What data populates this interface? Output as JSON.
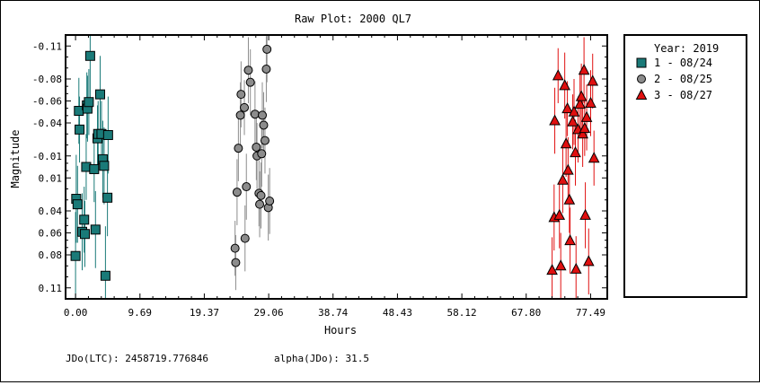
{
  "footer": {
    "jdo_label": "JDo(LTC): 2458719.776846",
    "alpha_label": "alpha(JDo): 31.5"
  },
  "chart_data": {
    "type": "scatter",
    "title": "Raw Plot: 2000 QL7",
    "xlabel": "Hours",
    "ylabel": "Magnitude",
    "xlim": [
      -1.5,
      80.0
    ],
    "ylim": [
      0.12,
      -0.12
    ],
    "y_inverted": true,
    "x_ticks": [
      0.0,
      9.69,
      19.37,
      29.06,
      38.74,
      48.43,
      58.12,
      67.8,
      77.49
    ],
    "x_tick_labels": [
      "0.00",
      "9.69",
      "19.37",
      "29.06",
      "38.74",
      "48.43",
      "58.12",
      "67.80",
      "77.49"
    ],
    "y_ticks": [
      -0.11,
      -0.08,
      -0.06,
      -0.04,
      -0.01,
      0.01,
      0.04,
      0.06,
      0.08,
      0.11
    ],
    "y_tick_labels": [
      "-0.11",
      "-0.08",
      "-0.06",
      "-0.04",
      "-0.01",
      "0.01",
      "0.04",
      "0.06",
      "0.08",
      "0.11"
    ],
    "legend": {
      "title": "Year: 2019",
      "position": "right"
    },
    "series": [
      {
        "name": "1 - 08/24",
        "marker": "square",
        "color": "#1a7a78",
        "points": [
          [
            0.0,
            0.081,
            0.04
          ],
          [
            0.1,
            0.029,
            0.04
          ],
          [
            0.3,
            0.034,
            0.035
          ],
          [
            0.5,
            -0.051,
            0.03
          ],
          [
            0.6,
            -0.034,
            0.03
          ],
          [
            1.0,
            0.059,
            0.035
          ],
          [
            1.3,
            0.048,
            0.03
          ],
          [
            1.4,
            0.061,
            0.03
          ],
          [
            1.6,
            0.0,
            0.03
          ],
          [
            1.7,
            -0.056,
            0.03
          ],
          [
            1.8,
            -0.053,
            0.03
          ],
          [
            2.0,
            -0.059,
            0.03
          ],
          [
            2.2,
            -0.101,
            0.045
          ],
          [
            2.8,
            0.002,
            0.03
          ],
          [
            3.0,
            0.057,
            0.035
          ],
          [
            3.3,
            -0.026,
            0.03
          ],
          [
            3.4,
            -0.03,
            0.03
          ],
          [
            3.7,
            -0.066,
            0.035
          ],
          [
            3.9,
            -0.03,
            0.03
          ],
          [
            4.1,
            -0.007,
            0.035
          ],
          [
            4.3,
            -0.001,
            0.035
          ],
          [
            4.5,
            0.099,
            0.045
          ],
          [
            4.8,
            0.028,
            0.035
          ],
          [
            4.9,
            -0.029,
            0.035
          ]
        ]
      },
      {
        "name": "2 - 08/25",
        "marker": "circle",
        "color": "#8c8c8c",
        "points": [
          [
            24.0,
            0.074,
            0.025
          ],
          [
            24.1,
            0.087,
            0.025
          ],
          [
            24.3,
            0.023,
            0.03
          ],
          [
            24.5,
            -0.017,
            0.03
          ],
          [
            24.8,
            -0.047,
            0.03
          ],
          [
            24.9,
            -0.066,
            0.03
          ],
          [
            25.4,
            -0.054,
            0.025
          ],
          [
            25.5,
            0.065,
            0.03
          ],
          [
            25.7,
            0.018,
            0.03
          ],
          [
            26.0,
            -0.088,
            0.03
          ],
          [
            26.3,
            -0.077,
            0.03
          ],
          [
            27.0,
            -0.048,
            0.03
          ],
          [
            27.2,
            -0.018,
            0.03
          ],
          [
            27.3,
            -0.01,
            0.03
          ],
          [
            27.6,
            0.024,
            0.03
          ],
          [
            27.7,
            0.034,
            0.03
          ],
          [
            27.9,
            0.026,
            0.03
          ],
          [
            28.0,
            -0.012,
            0.03
          ],
          [
            28.1,
            -0.047,
            0.03
          ],
          [
            28.3,
            -0.038,
            0.03
          ],
          [
            28.5,
            -0.024,
            0.03
          ],
          [
            28.7,
            -0.089,
            0.03
          ],
          [
            28.8,
            -0.107,
            0.03
          ],
          [
            29.0,
            0.037,
            0.03
          ],
          [
            29.2,
            0.031,
            0.03
          ]
        ]
      },
      {
        "name": "3 - 08/27",
        "marker": "triangle",
        "color": "#e01010",
        "points": [
          [
            71.7,
            0.094,
            0.03
          ],
          [
            72.0,
            0.046,
            0.03
          ],
          [
            72.1,
            -0.042,
            0.03
          ],
          [
            72.6,
            -0.083,
            0.025
          ],
          [
            72.8,
            0.044,
            0.03
          ],
          [
            73.0,
            0.09,
            0.03
          ],
          [
            73.3,
            0.012,
            0.03
          ],
          [
            73.6,
            -0.074,
            0.03
          ],
          [
            73.8,
            -0.021,
            0.03
          ],
          [
            74.0,
            -0.053,
            0.025
          ],
          [
            74.1,
            0.003,
            0.03
          ],
          [
            74.3,
            0.03,
            0.03
          ],
          [
            74.4,
            0.067,
            0.03
          ],
          [
            74.8,
            -0.041,
            0.025
          ],
          [
            75.0,
            -0.05,
            0.03
          ],
          [
            75.2,
            -0.013,
            0.03
          ],
          [
            75.3,
            0.093,
            0.03
          ],
          [
            75.6,
            -0.034,
            0.03
          ],
          [
            75.9,
            -0.057,
            0.03
          ],
          [
            76.1,
            -0.064,
            0.03
          ],
          [
            76.3,
            -0.03,
            0.03
          ],
          [
            76.5,
            -0.088,
            0.03
          ],
          [
            76.6,
            -0.035,
            0.025
          ],
          [
            76.7,
            0.044,
            0.03
          ],
          [
            76.9,
            -0.045,
            0.03
          ],
          [
            77.2,
            0.086,
            0.03
          ],
          [
            77.5,
            -0.058,
            0.03
          ],
          [
            77.8,
            -0.078,
            0.025
          ],
          [
            78.0,
            -0.008,
            0.025
          ]
        ]
      }
    ]
  }
}
